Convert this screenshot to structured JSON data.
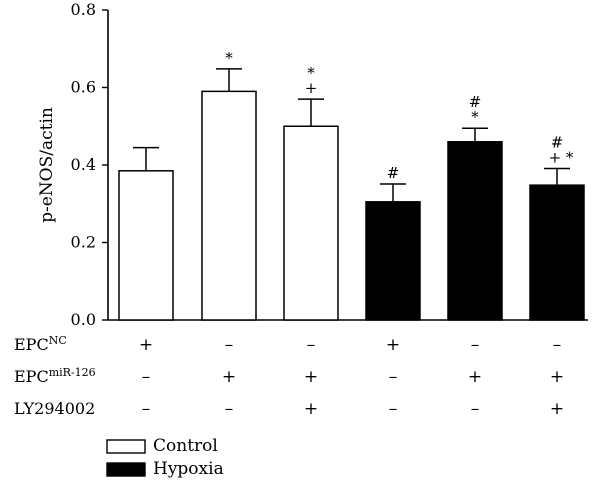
{
  "chart_data": {
    "type": "bar",
    "ylabel": "p-eNOS/actin",
    "ylim": [
      0,
      0.8
    ],
    "yticks": [
      "0.0",
      "0.2",
      "0.4",
      "0.6",
      "0.8"
    ],
    "grid": false,
    "legend_position": "bottom-left",
    "legend": [
      {
        "name": "Control",
        "fill": "#ffffff"
      },
      {
        "name": "Hypoxia",
        "fill": "#000000"
      }
    ],
    "bars": [
      {
        "group": "Control",
        "value": 0.385,
        "error": 0.06,
        "symbols": []
      },
      {
        "group": "Control",
        "value": 0.59,
        "error": 0.058,
        "symbols": [
          "*"
        ]
      },
      {
        "group": "Control",
        "value": 0.5,
        "error": 0.07,
        "symbols": [
          "*",
          "+"
        ]
      },
      {
        "group": "Hypoxia",
        "value": 0.305,
        "error": 0.046,
        "symbols": [
          "#"
        ]
      },
      {
        "group": "Hypoxia",
        "value": 0.46,
        "error": 0.035,
        "symbols": [
          "#",
          "*"
        ]
      },
      {
        "group": "Hypoxia",
        "value": 0.348,
        "error": 0.043,
        "symbols": [
          "#",
          "+  *"
        ]
      }
    ],
    "treatment_rows": [
      {
        "label_main": "EPC",
        "label_sup": "NC",
        "signs": [
          "+",
          "–",
          "–",
          "+",
          "–",
          "–"
        ]
      },
      {
        "label_main": "EPC",
        "label_sup": "miR-126",
        "signs": [
          "–",
          "+",
          "+",
          "–",
          "+",
          "+"
        ]
      },
      {
        "label_main": "LY294002",
        "label_sup": "",
        "signs": [
          "–",
          "–",
          "+",
          "–",
          "–",
          "+"
        ]
      }
    ],
    "colors": {
      "control_fill": "#ffffff",
      "hypoxia_fill": "#000000",
      "stroke": "#000000"
    }
  }
}
